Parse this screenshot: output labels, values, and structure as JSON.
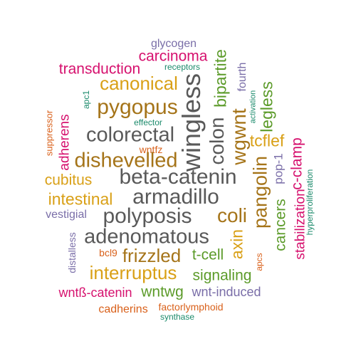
{
  "words": [
    {
      "text": "glycogen",
      "color": "#7a6ea8"
    },
    {
      "text": "carcinoma",
      "color": "#d6116e"
    },
    {
      "text": "receptors",
      "color": "#1b8a6b"
    },
    {
      "text": "transduction",
      "color": "#d6116e"
    },
    {
      "text": "canonical",
      "color": "#d9a017"
    },
    {
      "text": "bipartite",
      "color": "#5c9b2a"
    },
    {
      "text": "fourth",
      "color": "#7a6ea8"
    },
    {
      "text": "activation",
      "color": "#1b8a6b"
    },
    {
      "text": "legless",
      "color": "#5c9b2a"
    },
    {
      "text": "apc1",
      "color": "#1b8a6b"
    },
    {
      "text": "pygopus",
      "color": "#a57419"
    },
    {
      "text": "wingless",
      "color": "#595959"
    },
    {
      "text": "colon",
      "color": "#595959"
    },
    {
      "text": "wgwnt",
      "color": "#a57419"
    },
    {
      "text": "suppressor",
      "color": "#d9611b"
    },
    {
      "text": "effector",
      "color": "#1b8a6b"
    },
    {
      "text": "colorectal",
      "color": "#595959"
    },
    {
      "text": "adherens",
      "color": "#d6116e"
    },
    {
      "text": "wntfz",
      "color": "#d9611b"
    },
    {
      "text": "dishevelled",
      "color": "#a57419"
    },
    {
      "text": "tcflef",
      "color": "#d9a017"
    },
    {
      "text": "c-clamp",
      "color": "#d6116e"
    },
    {
      "text": "pangolin",
      "color": "#a57419"
    },
    {
      "text": "pop-1",
      "color": "#7a6ea8"
    },
    {
      "text": "hyperproliferation",
      "color": "#1b8a6b"
    },
    {
      "text": "cubitus",
      "color": "#d9a017"
    },
    {
      "text": "beta-catenin",
      "color": "#595959"
    },
    {
      "text": "stabilization",
      "color": "#d6116e"
    },
    {
      "text": "intestinal",
      "color": "#d9a017"
    },
    {
      "text": "armadillo",
      "color": "#595959"
    },
    {
      "text": "cancers",
      "color": "#5c9b2a"
    },
    {
      "text": "vestigial",
      "color": "#7a6ea8"
    },
    {
      "text": "polyposis",
      "color": "#595959"
    },
    {
      "text": "coli",
      "color": "#a57419"
    },
    {
      "text": "distalless",
      "color": "#7a6ea8"
    },
    {
      "text": "axin",
      "color": "#d9a017"
    },
    {
      "text": "adenomatous",
      "color": "#595959"
    },
    {
      "text": "bcl9",
      "color": "#d9611b"
    },
    {
      "text": "frizzled",
      "color": "#a57419"
    },
    {
      "text": "t-cell",
      "color": "#5c9b2a"
    },
    {
      "text": "apcs",
      "color": "#d9611b"
    },
    {
      "text": "interruptus",
      "color": "#d9a017"
    },
    {
      "text": "signaling",
      "color": "#5c9b2a"
    },
    {
      "text": "wntß-catenin",
      "color": "#d6116e"
    },
    {
      "text": "wntwg",
      "color": "#5c9b2a"
    },
    {
      "text": "wnt-induced",
      "color": "#7a6ea8"
    },
    {
      "text": "cadherins",
      "color": "#d9611b"
    },
    {
      "text": "factorlymphoid",
      "color": "#d9611b"
    },
    {
      "text": "synthase",
      "color": "#1b8a6b"
    }
  ]
}
